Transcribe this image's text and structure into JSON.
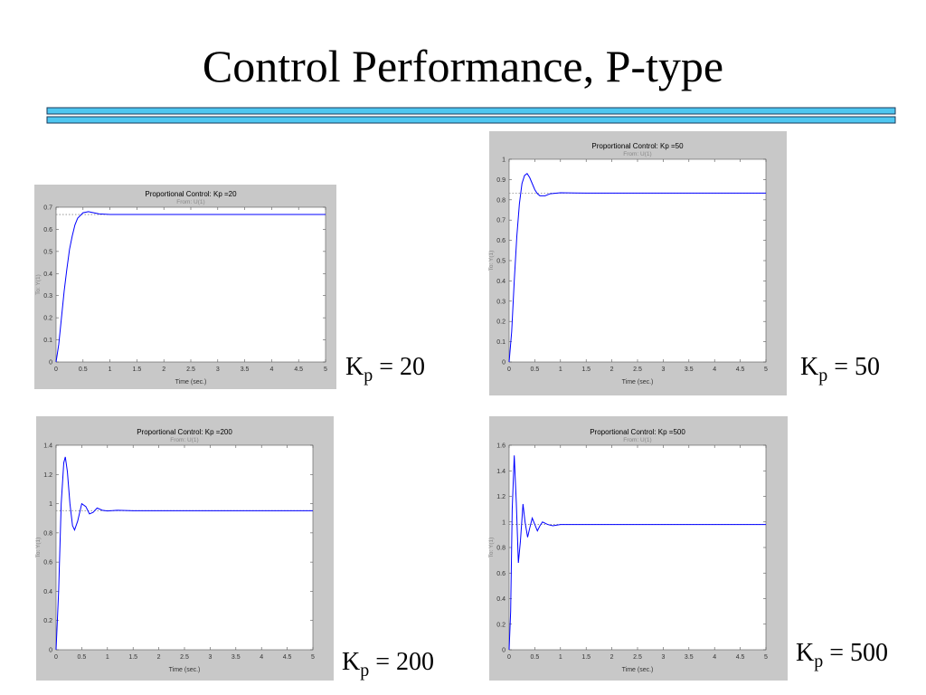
{
  "title": "Control Performance, P-type",
  "labels": [
    {
      "base": "K",
      "sub": "p",
      "rest": " = 20"
    },
    {
      "base": "K",
      "sub": "p",
      "rest": " = 50"
    },
    {
      "base": "K",
      "sub": "p",
      "rest": " = 200"
    },
    {
      "base": "K",
      "sub": "p",
      "rest": " = 500"
    }
  ],
  "chart_data": [
    {
      "type": "line",
      "title": "Proportional Control: Kp =20",
      "subtitle": "From: U(1)",
      "x_label": "Time (sec.)",
      "y_label": "To: Y(1)",
      "x": [
        0,
        0.05,
        0.1,
        0.15,
        0.2,
        0.25,
        0.3,
        0.35,
        0.4,
        0.5,
        0.6,
        0.7,
        0.8,
        1,
        1.5,
        2,
        3,
        4,
        5
      ],
      "series": [
        {
          "name": "Y(1)",
          "color": "#0000ff",
          "values": [
            0,
            0.08,
            0.2,
            0.32,
            0.42,
            0.51,
            0.57,
            0.62,
            0.65,
            0.675,
            0.68,
            0.675,
            0.67,
            0.667,
            0.667,
            0.667,
            0.667,
            0.667,
            0.667
          ]
        }
      ],
      "steady_state": 0.667,
      "grid": false,
      "xlim": [
        0,
        5
      ],
      "xticks": [
        0,
        0.5,
        1,
        1.5,
        2,
        2.5,
        3,
        3.5,
        4,
        4.5,
        5
      ],
      "ylim": [
        0,
        0.7
      ],
      "yticks": [
        0,
        0.1,
        0.2,
        0.3,
        0.4,
        0.5,
        0.6,
        0.7
      ]
    },
    {
      "type": "line",
      "title": "Proportional Control: Kp =50",
      "subtitle": "From: U(1)",
      "x_label": "Time (sec.)",
      "y_label": "To: Y(1)",
      "x": [
        0,
        0.05,
        0.1,
        0.15,
        0.2,
        0.25,
        0.3,
        0.35,
        0.4,
        0.45,
        0.5,
        0.55,
        0.6,
        0.7,
        0.8,
        1,
        1.5,
        2,
        3,
        4,
        5
      ],
      "series": [
        {
          "name": "Y(1)",
          "color": "#0000ff",
          "values": [
            0,
            0.15,
            0.4,
            0.62,
            0.78,
            0.88,
            0.92,
            0.93,
            0.91,
            0.88,
            0.85,
            0.83,
            0.82,
            0.82,
            0.83,
            0.835,
            0.833,
            0.833,
            0.833,
            0.833,
            0.833
          ]
        }
      ],
      "steady_state": 0.833,
      "grid": false,
      "xlim": [
        0,
        5
      ],
      "xticks": [
        0,
        0.5,
        1,
        1.5,
        2,
        2.5,
        3,
        3.5,
        4,
        4.5,
        5
      ],
      "ylim": [
        0,
        1
      ],
      "yticks": [
        0,
        0.1,
        0.2,
        0.3,
        0.4,
        0.5,
        0.6,
        0.7,
        0.8,
        0.9,
        1
      ]
    },
    {
      "type": "line",
      "title": "Proportional Control: Kp =200",
      "subtitle": "From: U(1)",
      "x_label": "Time (sec.)",
      "y_label": "To: Y(1)",
      "x": [
        0,
        0.05,
        0.1,
        0.15,
        0.18,
        0.22,
        0.27,
        0.32,
        0.36,
        0.42,
        0.5,
        0.58,
        0.65,
        0.72,
        0.8,
        0.9,
        1,
        1.2,
        1.5,
        2,
        3,
        4,
        5
      ],
      "series": [
        {
          "name": "Y(1)",
          "color": "#0000ff",
          "values": [
            0,
            0.4,
            1.0,
            1.28,
            1.32,
            1.22,
            1.0,
            0.85,
            0.82,
            0.88,
            1.0,
            0.98,
            0.93,
            0.94,
            0.97,
            0.955,
            0.95,
            0.955,
            0.952,
            0.952,
            0.952,
            0.952,
            0.952
          ]
        }
      ],
      "steady_state": 0.952,
      "grid": false,
      "xlim": [
        0,
        5
      ],
      "xticks": [
        0,
        0.5,
        1,
        1.5,
        2,
        2.5,
        3,
        3.5,
        4,
        4.5,
        5
      ],
      "ylim": [
        0,
        1.4
      ],
      "yticks": [
        0,
        0.2,
        0.4,
        0.6,
        0.8,
        1,
        1.2,
        1.4
      ]
    },
    {
      "type": "line",
      "title": "Proportional Control: Kp =500",
      "subtitle": "From: U(1)",
      "x_label": "Time (sec.)",
      "y_label": "To: Y(1)",
      "x": [
        0,
        0.03,
        0.06,
        0.1,
        0.14,
        0.18,
        0.22,
        0.27,
        0.31,
        0.36,
        0.4,
        0.45,
        0.5,
        0.55,
        0.6,
        0.65,
        0.75,
        0.85,
        1,
        1.5,
        2,
        3,
        4,
        5
      ],
      "series": [
        {
          "name": "Y(1)",
          "color": "#0000ff",
          "values": [
            0,
            0.3,
            1.1,
            1.52,
            1.15,
            0.68,
            0.85,
            1.14,
            1.0,
            0.88,
            0.95,
            1.03,
            0.98,
            0.93,
            0.97,
            1.0,
            0.98,
            0.97,
            0.98,
            0.98,
            0.98,
            0.98,
            0.98,
            0.98
          ]
        }
      ],
      "steady_state": 0.98,
      "grid": false,
      "xlim": [
        0,
        5
      ],
      "xticks": [
        0,
        0.5,
        1,
        1.5,
        2,
        2.5,
        3,
        3.5,
        4,
        4.5,
        5
      ],
      "ylim": [
        0,
        1.6
      ],
      "yticks": [
        0,
        0.2,
        0.4,
        0.6,
        0.8,
        1,
        1.2,
        1.4,
        1.6
      ]
    }
  ]
}
